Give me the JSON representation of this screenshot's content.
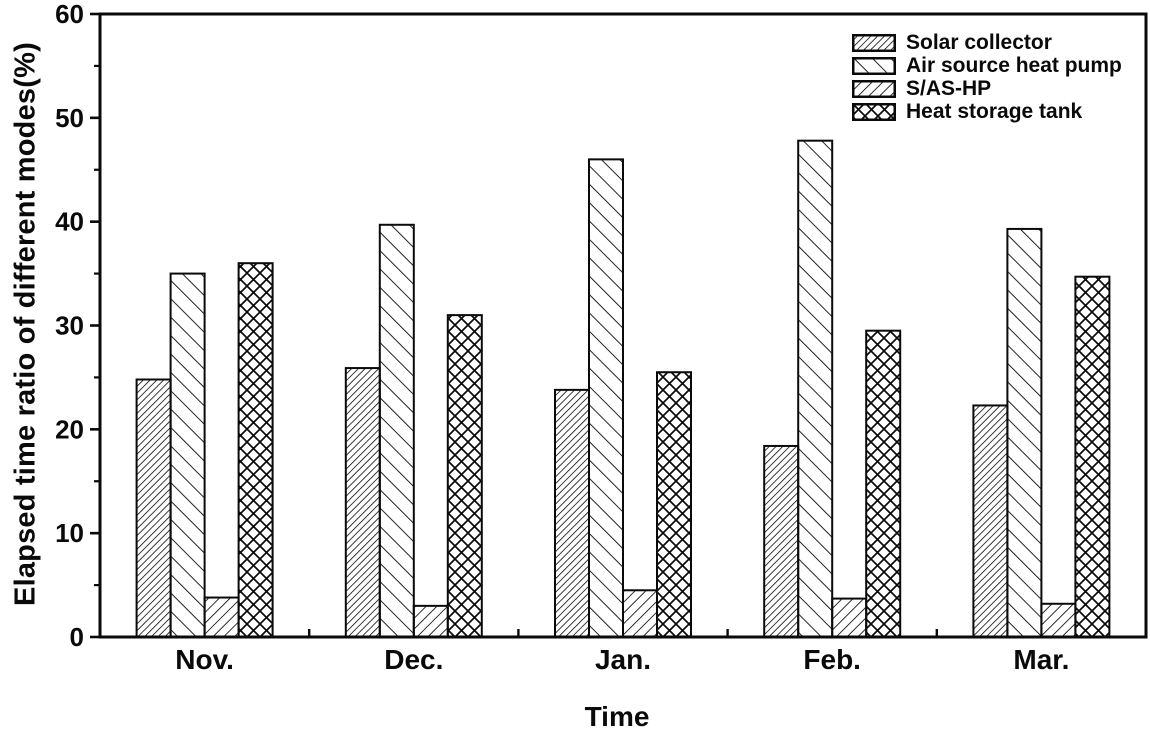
{
  "chart_data": {
    "type": "bar",
    "title": "",
    "xlabel": "Time",
    "ylabel": "Elapsed time ratio of different modes(%)",
    "categories": [
      "Nov.",
      "Dec.",
      "Jan.",
      "Feb.",
      "Mar."
    ],
    "series": [
      {
        "name": "Solar collector",
        "hatch": "dense-forward-diagonal",
        "values": [
          24.8,
          25.9,
          23.8,
          18.4,
          22.3
        ]
      },
      {
        "name": "Air source heat pump",
        "hatch": "sparse-back-diagonal",
        "values": [
          35.0,
          39.7,
          46.0,
          47.8,
          39.3
        ]
      },
      {
        "name": "S/AS-HP",
        "hatch": "medium-forward-diagonal",
        "values": [
          3.8,
          3.0,
          4.5,
          3.7,
          3.2
        ]
      },
      {
        "name": "Heat storage tank",
        "hatch": "diagonal-crosshatch",
        "values": [
          36.0,
          31.0,
          25.5,
          29.5,
          34.7
        ]
      }
    ],
    "ylim": [
      0,
      60
    ],
    "y_major_ticks": [
      0,
      10,
      20,
      30,
      40,
      50,
      60
    ],
    "y_minor_tick_step": 5,
    "grid": false,
    "frame": "full-box",
    "legend_position": "top-right-inside",
    "colors": {
      "foreground": "#0a0a0a",
      "background": "#ffffff"
    }
  }
}
